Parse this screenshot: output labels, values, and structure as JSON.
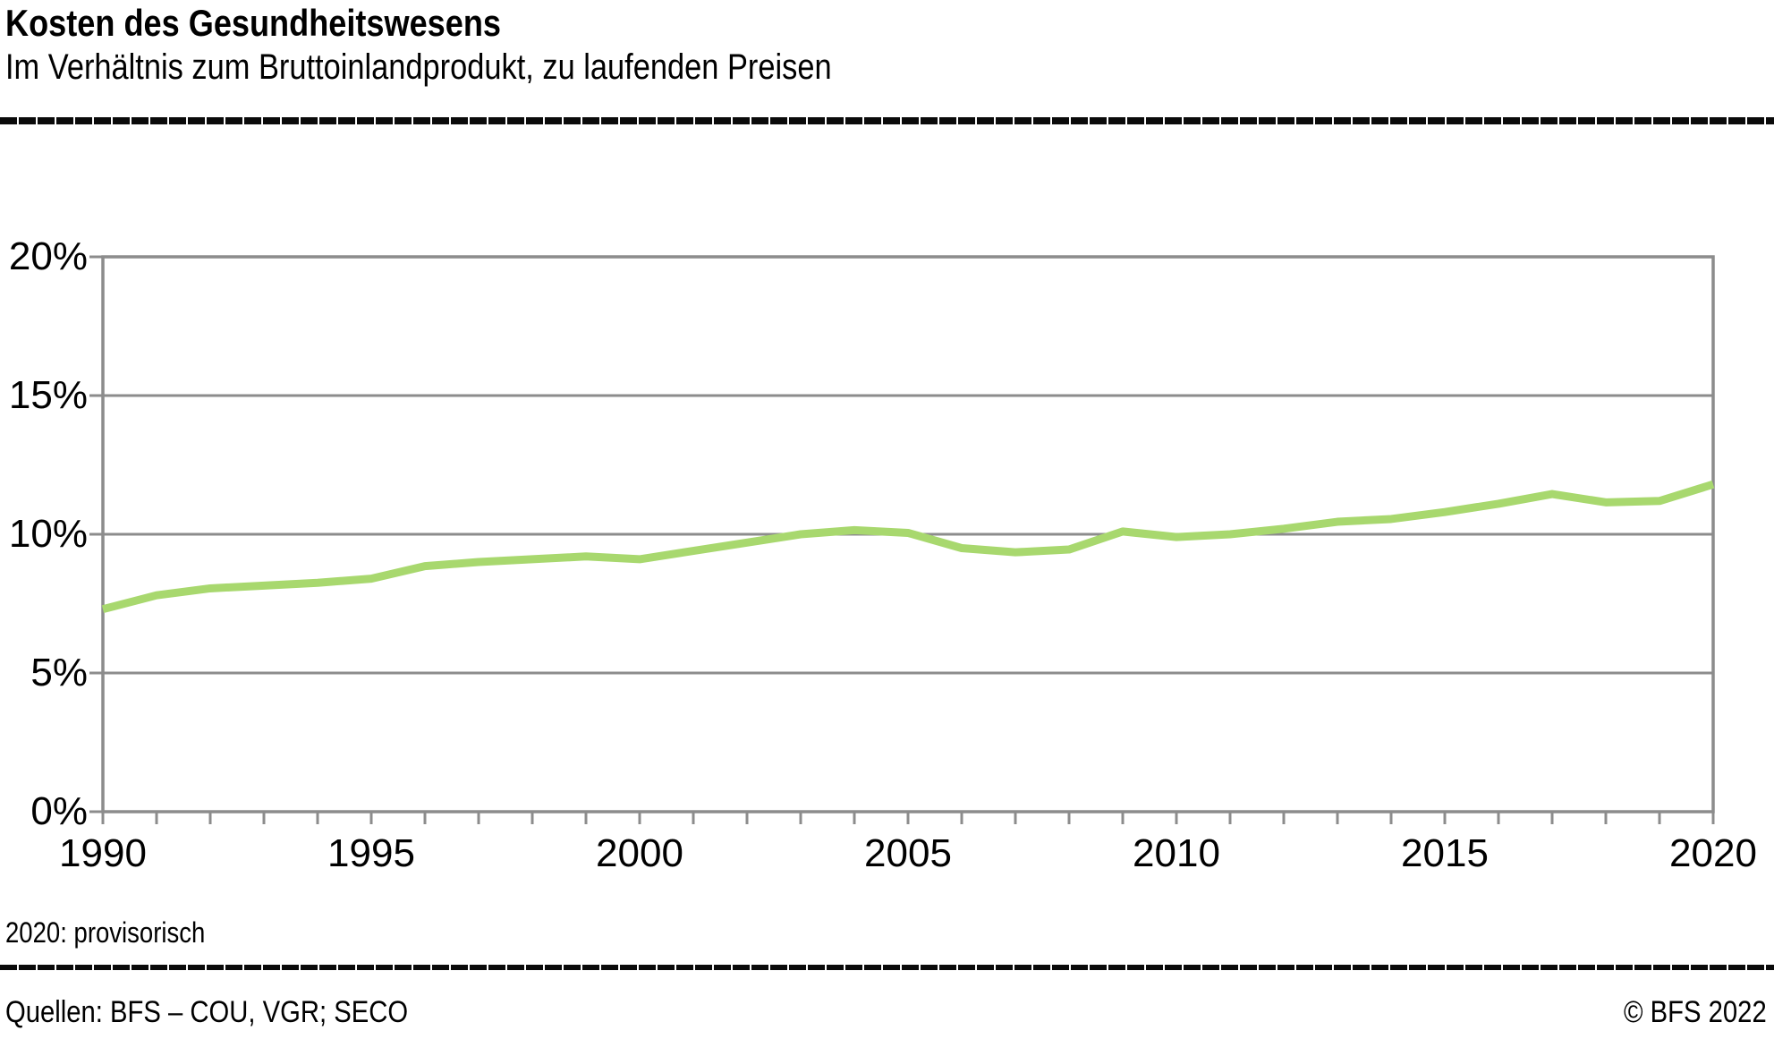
{
  "header": {
    "title": "Kosten des Gesundheitswesens",
    "subtitle": "Im Verhältnis zum Bruttoinlandprodukt, zu laufenden Preisen"
  },
  "footnote": "2020: provisorisch",
  "footer": {
    "sources": "Quellen: BFS – COU, VGR; SECO",
    "copyright": "© BFS 2022"
  },
  "colors": {
    "line": "#a8d86e",
    "axis": "#8c8c8c",
    "grid": "#8c8c8c",
    "rule": "#0a0a0a",
    "text": "#000000"
  },
  "chart_data": {
    "type": "line",
    "title": "Kosten des Gesundheitswesens",
    "subtitle": "Im Verhältnis zum Bruttoinlandprodukt, zu laufenden Preisen",
    "x": [
      1990,
      1991,
      1992,
      1993,
      1994,
      1995,
      1996,
      1997,
      1998,
      1999,
      2000,
      2001,
      2002,
      2003,
      2004,
      2005,
      2006,
      2007,
      2008,
      2009,
      2010,
      2011,
      2012,
      2013,
      2014,
      2015,
      2016,
      2017,
      2018,
      2019,
      2020
    ],
    "values": [
      7.3,
      7.8,
      8.05,
      8.15,
      8.25,
      8.4,
      8.85,
      9.0,
      9.1,
      9.2,
      9.1,
      9.4,
      9.7,
      10.0,
      10.15,
      10.05,
      9.5,
      9.35,
      9.45,
      10.1,
      9.9,
      10.0,
      10.2,
      10.45,
      10.55,
      10.8,
      11.1,
      11.45,
      11.15,
      11.2,
      11.8
    ],
    "unit": "%",
    "ylim": [
      0,
      20
    ],
    "ytick_values": [
      0,
      5,
      10,
      15,
      20
    ],
    "ytick_labels": [
      "0%",
      "5%",
      "10%",
      "15%",
      "20%"
    ],
    "xtick_values": [
      1990,
      1995,
      2000,
      2005,
      2010,
      2015,
      2020
    ],
    "xtick_labels": [
      "1990",
      "1995",
      "2000",
      "2005",
      "2010",
      "2015",
      "2020"
    ],
    "minor_xticks_every": 1,
    "grid": "horizontal",
    "legend": "none",
    "line_color": "#a8d86e",
    "line_width": 9
  }
}
